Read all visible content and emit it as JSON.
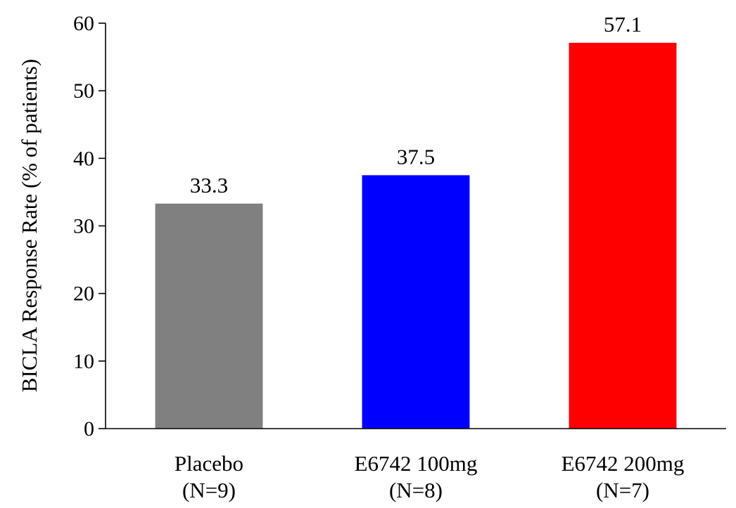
{
  "chart_data": {
    "type": "bar",
    "title": "",
    "xlabel": "",
    "ylabel": "BICLA Response Rate (% of patients)",
    "ylim": [
      0,
      60
    ],
    "yticks": [
      0,
      10,
      20,
      30,
      40,
      50,
      60
    ],
    "grid": false,
    "legend": "none",
    "categories": [
      {
        "line1": "Placebo",
        "line2": "(N=9)"
      },
      {
        "line1": "E6742 100mg",
        "line2": "(N=8)"
      },
      {
        "line1": "E6742 200mg",
        "line2": "(N=7)"
      }
    ],
    "values": [
      33.3,
      37.5,
      57.1
    ],
    "value_labels": [
      "33.3",
      "37.5",
      "57.1"
    ],
    "colors": [
      "#808080",
      "#0000ff",
      "#ff0000"
    ]
  }
}
